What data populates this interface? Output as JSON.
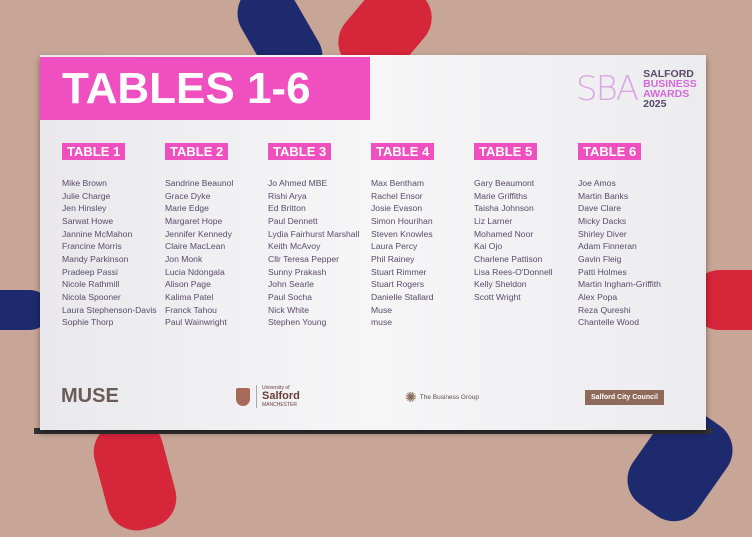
{
  "header": {
    "title": "TABLES 1-6"
  },
  "logo": {
    "mark": "SBA",
    "line1": "SALFORD",
    "line2": "BUSINESS",
    "line3": "AWARDS",
    "year": "2025"
  },
  "tables": [
    {
      "label": "TABLE 1",
      "names": [
        "Mike Brown",
        "Julie Charge",
        "Jen Hinsley",
        "Sarwat Howe",
        "Jannine McMahon",
        "Francine Morris",
        "Mandy Parkinson",
        "Pradeep Passi",
        "Nicole Rathmill",
        "Nicola Spooner",
        "Laura Stephenson-Davis",
        "Sophie Thorp"
      ]
    },
    {
      "label": "TABLE 2",
      "names": [
        "Sandrine Beaunol",
        "Grace Dyke",
        "Marie Edge",
        "Margaret Hope",
        "Jennifer Kennedy",
        "Claire MacLean",
        "Jon Monk",
        "Lucia Ndongala",
        "Alison Page",
        "Kalima Patel",
        "Franck Tahou",
        "Paul Wainwright"
      ]
    },
    {
      "label": "TABLE 3",
      "names": [
        "Jo Ahmed MBE",
        "Rishi Arya",
        "Ed Britton",
        "Paul Dennett",
        "Lydia Fairhurst Marshall",
        "Keith McAvoy",
        "Cllr Teresa Pepper",
        "Sunny Prakash",
        "John Searle",
        "Paul Socha",
        "Nick White",
        "Stephen Young"
      ]
    },
    {
      "label": "TABLE 4",
      "names": [
        "Max Bentham",
        "Rachel Ensor",
        "Josie Evason",
        "Simon Hourihan",
        "Steven Knowles",
        "Laura Percy",
        "Phil Rainey",
        "Stuart Rimmer",
        "Stuart Rogers",
        "Danielle Stallard",
        "Muse",
        "muse"
      ]
    },
    {
      "label": "TABLE 5",
      "names": [
        "Gary Beaumont",
        "Marie Griffiths",
        "Taisha Johnson",
        "Liz Larner",
        "Mohamed Noor",
        "Kai Ojo",
        "Charlene Pattison",
        "Lisa Rees-O'Donnell",
        "Kelly Sheldon",
        "Scott Wright"
      ]
    },
    {
      "label": "TABLE 6",
      "names": [
        "Joe Amos",
        "Martin Banks",
        "Dave Clare",
        "Micky Dacks",
        "Shirley Diver",
        "Adam Finneran",
        "Gavin Fleig",
        "Patti Holmes",
        "Martin Ingham-Griffith",
        "Alex Popa",
        "Reza Qureshi",
        "Chantelle Wood"
      ]
    }
  ],
  "sponsors": {
    "muse": "MUSE",
    "uni_top": "University of",
    "uni_name": "Salford",
    "uni_city": "MANCHESTER",
    "business_group": "The Business Group",
    "council": "Salford City Council"
  },
  "colors": {
    "accent": "#f04fbf",
    "wall": "#c8a697"
  }
}
